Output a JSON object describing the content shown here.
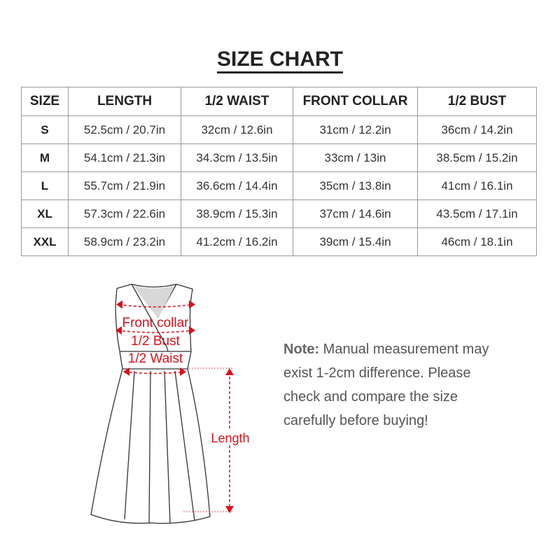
{
  "title": "SIZE CHART",
  "table": {
    "headers": [
      "SIZE",
      "LENGTH",
      "1/2 WAIST",
      "FRONT COLLAR",
      "1/2 BUST"
    ],
    "rows": [
      [
        "S",
        "52.5cm / 20.7in",
        "32cm / 12.6in",
        "31cm / 12.2in",
        "36cm / 14.2in"
      ],
      [
        "M",
        "54.1cm / 21.3in",
        "34.3cm / 13.5in",
        "33cm / 13in",
        "38.5cm / 15.2in"
      ],
      [
        "L",
        "55.7cm / 21.9in",
        "36.6cm / 14.4in",
        "35cm / 13.8in",
        "41cm / 16.1in"
      ],
      [
        "XL",
        "57.3cm / 22.6in",
        "38.9cm / 15.3in",
        "37cm / 14.6in",
        "43.5cm / 17.1in"
      ],
      [
        "XXL",
        "58.9cm / 23.2in",
        "41.2cm / 16.2in",
        "39cm / 15.4in",
        "46cm / 18.1in"
      ]
    ]
  },
  "diagram": {
    "labels": {
      "front_collar": "Front collar",
      "bust": "1/2 Bust",
      "waist": "1/2 Waist",
      "length": "Length"
    },
    "accent_color": "#d8101a"
  },
  "note": {
    "label": "Note:",
    "text": "Manual measurement may exist 1-2cm difference. Please check and compare the size carefully before buying!"
  }
}
